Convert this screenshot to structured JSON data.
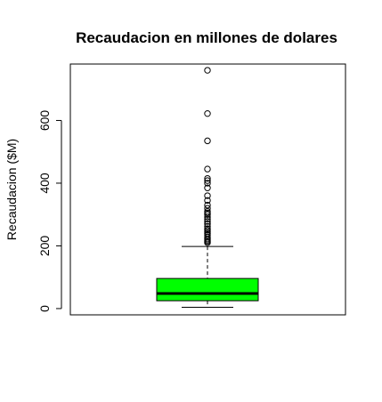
{
  "chart_data": {
    "type": "boxplot",
    "title": "Recaudacion en millones de dolares",
    "ylabel": "Recaudacion ($M)",
    "xlabel": "",
    "ylim": [
      -20,
      780
    ],
    "yticks": [
      0,
      200,
      400,
      600
    ],
    "box": {
      "fill_color": "#00ff00",
      "min": 4,
      "q1": 25,
      "median": 48,
      "q3": 96,
      "whisker_high": 198
    },
    "outliers": [
      760,
      622,
      535,
      445,
      415,
      408,
      400,
      385,
      360,
      345,
      330,
      320,
      310,
      305,
      300,
      292,
      285,
      278,
      270,
      262,
      255,
      250,
      245,
      240,
      235,
      228,
      222,
      218,
      214,
      210
    ]
  }
}
